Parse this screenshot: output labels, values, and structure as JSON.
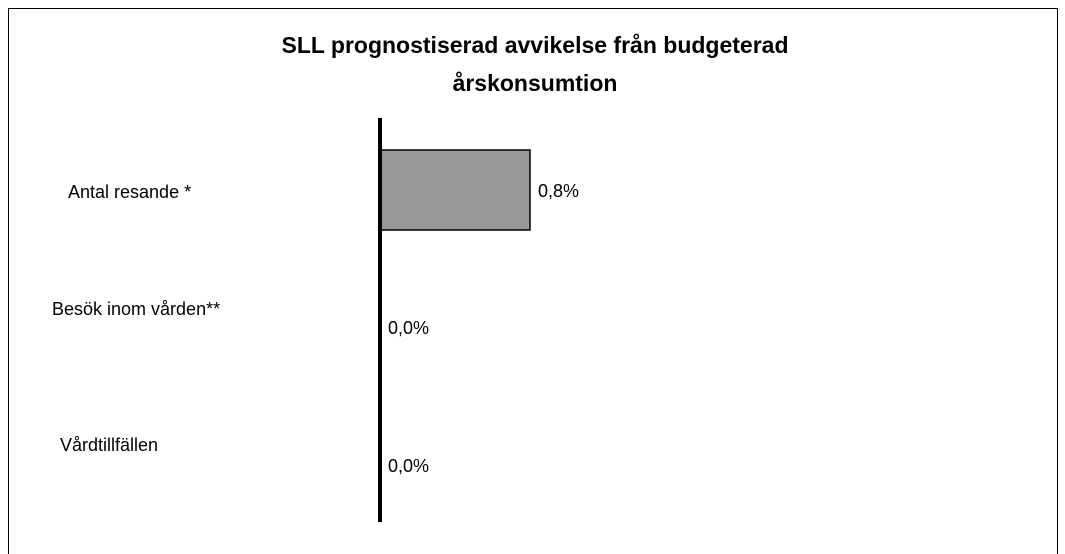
{
  "chart_data": {
    "type": "bar",
    "orientation": "horizontal",
    "title": [
      "SLL prognostiserad avvikelse från budgeterad",
      "årskonsumtion"
    ],
    "categories": [
      "Antal resande *",
      "Besök inom vården**",
      "Vårdtillfällen"
    ],
    "values": [
      0.8,
      0.0,
      0.0
    ],
    "value_labels": [
      "0,8%",
      "0,0%",
      "0,0%"
    ],
    "color": "#999999",
    "xlim": [
      -1.5,
      3.5
    ]
  }
}
